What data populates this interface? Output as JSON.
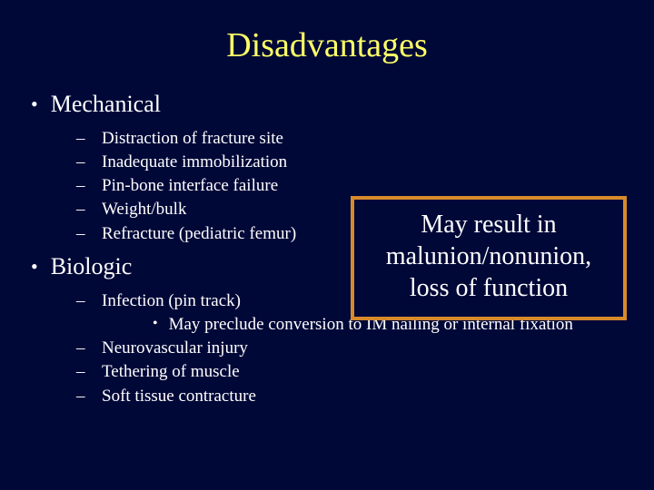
{
  "background_color": "#000838",
  "title": {
    "text": "Disadvantages",
    "color": "#ffff66",
    "fontsize": 38
  },
  "bullets": {
    "main_fontsize": 26,
    "sub_fontsize": 19,
    "text_color": "#ffffff",
    "mechanical": {
      "label": "Mechanical",
      "items": [
        "Distraction of fracture site",
        "Inadequate immobilization",
        "Pin-bone interface failure",
        "Weight/bulk",
        "Refracture (pediatric femur)"
      ]
    },
    "biologic": {
      "label": "Biologic",
      "items": {
        "infection": {
          "label": "Infection (pin track)",
          "sub": "May preclude conversion to IM nailing or internal fixation"
        },
        "neurovascular": "Neurovascular injury",
        "tethering": "Tethering of muscle",
        "contracture": "Soft tissue contracture"
      }
    }
  },
  "callout": {
    "border_color": "#d88a2a",
    "border_width": 4,
    "fontsize": 28,
    "lines": [
      "May result in",
      "malunion/nonunion,",
      "loss of function"
    ]
  }
}
